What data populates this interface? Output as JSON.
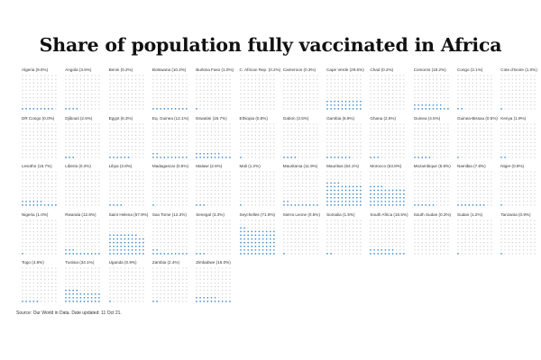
{
  "chart_data": {
    "type": "waffle",
    "title": "Share of population fully vaccinated in Africa",
    "unit": "%",
    "grid_size": "10x10 (each dot = 1% of population)",
    "colors": {
      "filled": "#3a86c8",
      "empty": "#c8c8c8"
    },
    "countries": [
      {
        "name": "Algeria",
        "value": 9.0,
        "label": "Algeria (9.0%)"
      },
      {
        "name": "Angola",
        "value": 3.6,
        "label": "Angola (3.6%)"
      },
      {
        "name": "Benin",
        "value": 0.2,
        "label": "Benin (0.2%)"
      },
      {
        "name": "Botswana",
        "value": 10.2,
        "label": "Botswana (10.2%)"
      },
      {
        "name": "Burkina Faso",
        "value": 1.0,
        "label": "Burkina Faso (1.0%)"
      },
      {
        "name": "C. African Rep.",
        "value": 0.2,
        "label": "C. African Rep. (0.2%)"
      },
      {
        "name": "Cameroon",
        "value": 0.3,
        "label": "Cameroon (0.3%)"
      },
      {
        "name": "Cape Verde",
        "value": 29.6,
        "label": "Cape Verde (29.6%)"
      },
      {
        "name": "Chad",
        "value": 0.2,
        "label": "Chad (0.2%)"
      },
      {
        "name": "Comoros",
        "value": 18.2,
        "label": "Comoros (18.2%)"
      },
      {
        "name": "Congo",
        "value": 2.1,
        "label": "Congo (2.1%)"
      },
      {
        "name": "Cote d'Ivoire",
        "value": 1.0,
        "label": "Cote d'Ivoire (1.0%)"
      },
      {
        "name": "DR Congo",
        "value": 0.0,
        "label": "DR Congo (0.0%)"
      },
      {
        "name": "Djibouti",
        "value": 2.6,
        "label": "Djibouti (2.6%)"
      },
      {
        "name": "Egypt",
        "value": 6.3,
        "label": "Egypt (6.3%)"
      },
      {
        "name": "Eq. Guinea",
        "value": 12.1,
        "label": "Eq. Guinea (12.1%)"
      },
      {
        "name": "Eswatini",
        "value": 16.7,
        "label": "Eswatini (16.7%)"
      },
      {
        "name": "Ethiopia",
        "value": 0.8,
        "label": "Ethiopia (0.8%)"
      },
      {
        "name": "Gabon",
        "value": 3.5,
        "label": "Gabon (3.5%)"
      },
      {
        "name": "Gambia",
        "value": 6.9,
        "label": "Gambia (6.9%)"
      },
      {
        "name": "Ghana",
        "value": 2.6,
        "label": "Ghana (2.6%)"
      },
      {
        "name": "Guinea",
        "value": 4.5,
        "label": "Guinea (4.5%)"
      },
      {
        "name": "Guinea-Bissau",
        "value": 0.5,
        "label": "Guinea-Bissau (0.5%)"
      },
      {
        "name": "Kenya",
        "value": 1.9,
        "label": "Kenya (1.9%)"
      },
      {
        "name": "Lesotho",
        "value": 15.7,
        "label": "Lesotho (15.7%)"
      },
      {
        "name": "Liberia",
        "value": 0.2,
        "label": "Liberia (0.2%)"
      },
      {
        "name": "Libya",
        "value": 3.8,
        "label": "Libya (3.8%)"
      },
      {
        "name": "Madagascar",
        "value": 0.6,
        "label": "Madagascar (0.6%)"
      },
      {
        "name": "Malawi",
        "value": 2.6,
        "label": "Malawi (2.6%)"
      },
      {
        "name": "Mali",
        "value": 1.2,
        "label": "Mali (1.2%)"
      },
      {
        "name": "Mauritania",
        "value": 11.9,
        "label": "Mauritania (11.9%)"
      },
      {
        "name": "Mauritius",
        "value": 64.1,
        "label": "Mauritius (64.1%)"
      },
      {
        "name": "Morocco",
        "value": 53.8,
        "label": "Morocco (53.8%)"
      },
      {
        "name": "Mozambique",
        "value": 5.5,
        "label": "Mozambique (5.5%)"
      },
      {
        "name": "Namibia",
        "value": 7.8,
        "label": "Namibia (7.8%)"
      },
      {
        "name": "Niger",
        "value": 0.9,
        "label": "Niger (0.9%)"
      },
      {
        "name": "Nigeria",
        "value": 1.0,
        "label": "Nigeria (1.0%)"
      },
      {
        "name": "Rwanda",
        "value": 12.8,
        "label": "Rwanda (12.8%)"
      },
      {
        "name": "Saint Helena",
        "value": 57.9,
        "label": "Saint Helena (57.9%)"
      },
      {
        "name": "Sao Tome",
        "value": 12.3,
        "label": "Sao Tome (12.3%)"
      },
      {
        "name": "Senegal",
        "value": 3.3,
        "label": "Senegal (3.3%)"
      },
      {
        "name": "Seychelles",
        "value": 71.9,
        "label": "Seychelles (71.9%)"
      },
      {
        "name": "Sierra Leone",
        "value": 0.5,
        "label": "Sierra Leone (0.5%)"
      },
      {
        "name": "Somalia",
        "value": 1.5,
        "label": "Somalia (1.5%)"
      },
      {
        "name": "South Africa",
        "value": 16.5,
        "label": "South Africa (16.5%)"
      },
      {
        "name": "South Sudan",
        "value": 0.3,
        "label": "South Sudan (0.3%)"
      },
      {
        "name": "Sudan",
        "value": 1.2,
        "label": "Sudan (1.2%)"
      },
      {
        "name": "Tanzania",
        "value": 0.9,
        "label": "Tanzania (0.9%)"
      },
      {
        "name": "Togo",
        "value": 4.8,
        "label": "Togo (4.8%)"
      },
      {
        "name": "Tunisia",
        "value": 34.1,
        "label": "Tunisia (34.1%)"
      },
      {
        "name": "Uganda",
        "value": 0.9,
        "label": "Uganda (0.9%)"
      },
      {
        "name": "Zambia",
        "value": 2.4,
        "label": "Zambia (2.4%)"
      },
      {
        "name": "Zimbabwe",
        "value": 16.0,
        "label": "Zimbabwe (16.0%)"
      }
    ],
    "source": "Source: Our World in Data. Date updated: 11 Oct 21."
  }
}
